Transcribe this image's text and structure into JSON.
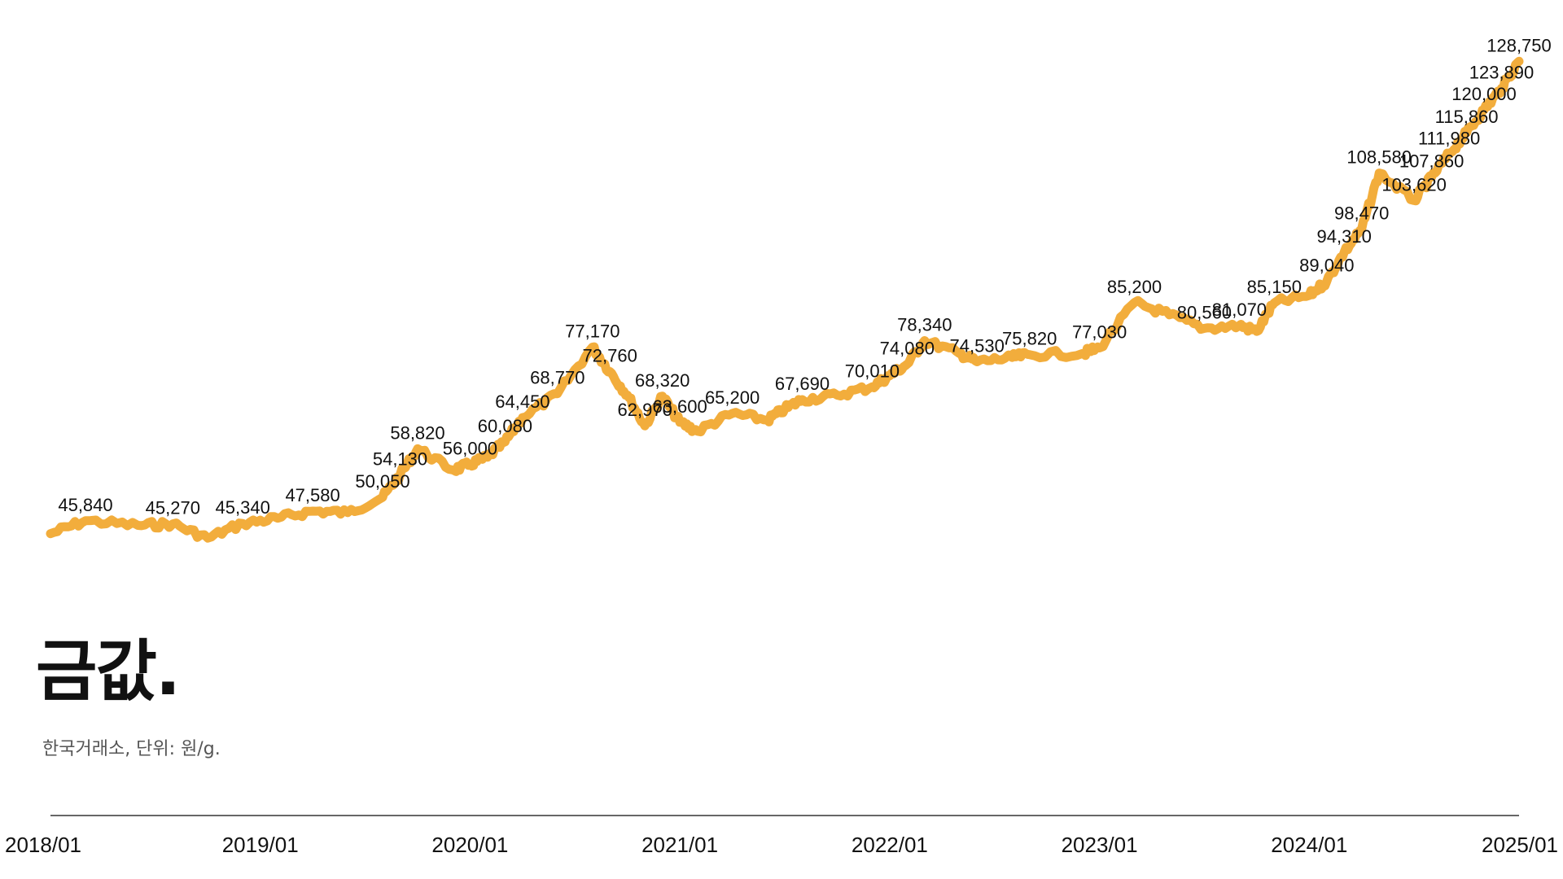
{
  "title": "금값.",
  "subtitle": "한국거래소, 단위: 원/g.",
  "colors": {
    "line": "#f2ad3c",
    "axis": "#333333",
    "text": "#111111"
  },
  "chart_data": {
    "type": "line",
    "title": "금값.",
    "subtitle": "한국거래소, 단위: 원/g.",
    "xlabel": "",
    "ylabel": "",
    "x_ticks": [
      "2018/01",
      "2019/01",
      "2020/01",
      "2021/01",
      "2022/01",
      "2023/01",
      "2024/01",
      "2025/01"
    ],
    "xlim": [
      "2018/01",
      "2025/01"
    ],
    "ylim": [
      37000,
      131000
    ],
    "grid": false,
    "legend": "none",
    "series": [
      {
        "points": [
          [
            "2018/01",
            43500
          ],
          [
            "2018/03",
            45840
          ],
          [
            "2018/06",
            45000
          ],
          [
            "2018/08",
            45270
          ],
          [
            "2018/10",
            42700
          ],
          [
            "2018/12",
            45340
          ],
          [
            "2019/02",
            46300
          ],
          [
            "2019/04",
            47580
          ],
          [
            "2019/06",
            47300
          ],
          [
            "2019/08",
            50050
          ],
          [
            "2019/09",
            54130
          ],
          [
            "2019/10",
            58820
          ],
          [
            "2019/12",
            55000
          ],
          [
            "2020/01",
            56000
          ],
          [
            "2020/02",
            57300
          ],
          [
            "2020/03",
            60080
          ],
          [
            "2020/04",
            64450
          ],
          [
            "2020/06",
            68770
          ],
          [
            "2020/08",
            77170
          ],
          [
            "2020/09",
            72760
          ],
          [
            "2020/10",
            68500
          ],
          [
            "2020/11",
            62970
          ],
          [
            "2020/12",
            68320
          ],
          [
            "2021/01",
            63600
          ],
          [
            "2021/02",
            62000
          ],
          [
            "2021/04",
            65200
          ],
          [
            "2021/06",
            64000
          ],
          [
            "2021/07",
            66000
          ],
          [
            "2021/08",
            67690
          ],
          [
            "2021/10",
            68500
          ],
          [
            "2021/12",
            70010
          ],
          [
            "2022/01",
            72000
          ],
          [
            "2022/02",
            74080
          ],
          [
            "2022/03",
            78340
          ],
          [
            "2022/05",
            76000
          ],
          [
            "2022/06",
            74530
          ],
          [
            "2022/08",
            75300
          ],
          [
            "2022/09",
            75820
          ],
          [
            "2022/12",
            76000
          ],
          [
            "2023/01",
            77030
          ],
          [
            "2023/03",
            85200
          ],
          [
            "2023/05",
            83000
          ],
          [
            "2023/07",
            80560
          ],
          [
            "2023/09",
            81070
          ],
          [
            "2023/10",
            80000
          ],
          [
            "2023/11",
            85150
          ],
          [
            "2024/01",
            86500
          ],
          [
            "2024/02",
            89040
          ],
          [
            "2024/03",
            94310
          ],
          [
            "2024/04",
            98470
          ],
          [
            "2024/05",
            108580
          ],
          [
            "2024/07",
            103620
          ],
          [
            "2024/08",
            107860
          ],
          [
            "2024/09",
            111980
          ],
          [
            "2024/10",
            115860
          ],
          [
            "2024/11",
            120000
          ],
          [
            "2024/12",
            123890
          ],
          [
            "2025/01",
            128750
          ]
        ]
      }
    ],
    "labels": [
      {
        "date": "2018/03",
        "value": 45840,
        "text": "45,840"
      },
      {
        "date": "2018/08",
        "value": 45270,
        "text": "45,270"
      },
      {
        "date": "2018/12",
        "value": 45340,
        "text": "45,340"
      },
      {
        "date": "2019/04",
        "value": 47580,
        "text": "47,580"
      },
      {
        "date": "2019/08",
        "value": 50050,
        "text": "50,050"
      },
      {
        "date": "2019/09",
        "value": 54130,
        "text": "54,130"
      },
      {
        "date": "2019/10",
        "value": 58820,
        "text": "58,820"
      },
      {
        "date": "2020/01",
        "value": 56000,
        "text": "56,000"
      },
      {
        "date": "2020/03",
        "value": 60080,
        "text": "60,080"
      },
      {
        "date": "2020/04",
        "value": 64450,
        "text": "64,450"
      },
      {
        "date": "2020/06",
        "value": 68770,
        "text": "68,770"
      },
      {
        "date": "2020/08",
        "value": 77170,
        "text": "77,170"
      },
      {
        "date": "2020/09",
        "value": 72760,
        "text": "72,760"
      },
      {
        "date": "2020/11",
        "value": 62970,
        "text": "62,970"
      },
      {
        "date": "2020/12",
        "value": 68320,
        "text": "68,320"
      },
      {
        "date": "2021/01",
        "value": 63600,
        "text": "63,600"
      },
      {
        "date": "2021/04",
        "value": 65200,
        "text": "65,200"
      },
      {
        "date": "2021/08",
        "value": 67690,
        "text": "67,690"
      },
      {
        "date": "2021/12",
        "value": 70010,
        "text": "70,010"
      },
      {
        "date": "2022/02",
        "value": 74080,
        "text": "74,080"
      },
      {
        "date": "2022/03",
        "value": 78340,
        "text": "78,340"
      },
      {
        "date": "2022/06",
        "value": 74530,
        "text": "74,530"
      },
      {
        "date": "2022/09",
        "value": 75820,
        "text": "75,820"
      },
      {
        "date": "2023/01",
        "value": 77030,
        "text": "77,030"
      },
      {
        "date": "2023/03",
        "value": 85200,
        "text": "85,200"
      },
      {
        "date": "2023/07",
        "value": 80560,
        "text": "80,560"
      },
      {
        "date": "2023/09",
        "value": 81070,
        "text": "81,070"
      },
      {
        "date": "2023/11",
        "value": 85150,
        "text": "85,150"
      },
      {
        "date": "2024/02",
        "value": 89040,
        "text": "89,040"
      },
      {
        "date": "2024/03",
        "value": 94310,
        "text": "94,310"
      },
      {
        "date": "2024/04",
        "value": 98470,
        "text": "98,470"
      },
      {
        "date": "2024/05",
        "value": 108580,
        "text": "108,580"
      },
      {
        "date": "2024/07",
        "value": 103620,
        "text": "103,620"
      },
      {
        "date": "2024/08",
        "value": 107860,
        "text": "107,860"
      },
      {
        "date": "2024/09",
        "value": 111980,
        "text": "111,980"
      },
      {
        "date": "2024/10",
        "value": 115860,
        "text": "115,860"
      },
      {
        "date": "2024/11",
        "value": 120000,
        "text": "120,000"
      },
      {
        "date": "2024/12",
        "value": 123890,
        "text": "123,890"
      },
      {
        "date": "2025/01",
        "value": 128750,
        "text": "128,750"
      }
    ]
  }
}
